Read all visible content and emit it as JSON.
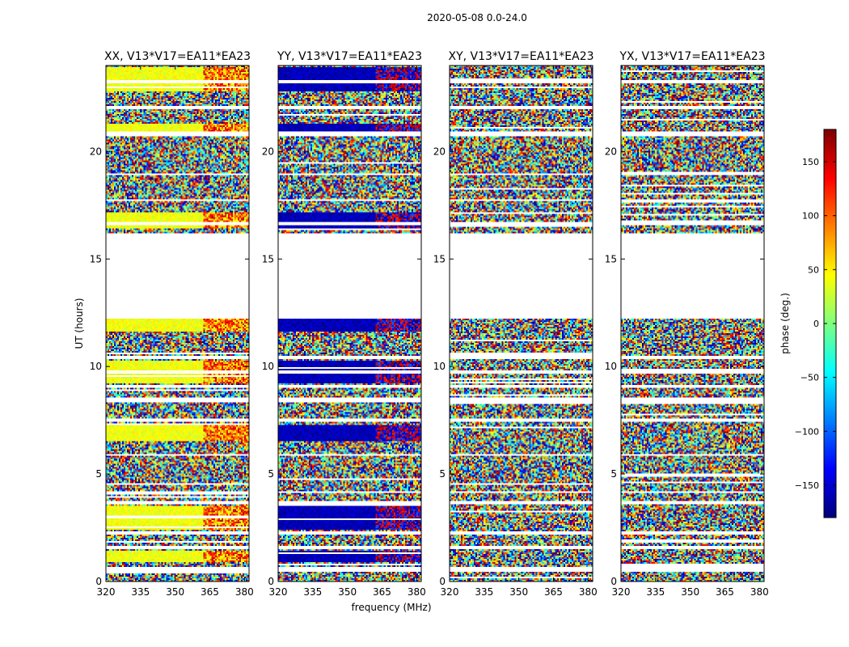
{
  "chart_data": {
    "type": "heatmap",
    "suptitle": "2020-05-08 0.0-24.0",
    "panels": [
      {
        "title": "XX, V13*V17=EA11*EA23",
        "pol": "XX"
      },
      {
        "title": "YY, V13*V17=EA11*EA23",
        "pol": "YY"
      },
      {
        "title": "XY, V13*V17=EA11*EA23",
        "pol": "XY"
      },
      {
        "title": "YX, V13*V17=EA11*EA23",
        "pol": "YX"
      }
    ],
    "xlabel": "frequency (MHz)",
    "ylabel": "UT (hours)",
    "xlim": [
      320,
      382
    ],
    "ylim": [
      0,
      24
    ],
    "x_ticks": [
      "320",
      "335",
      "350",
      "365",
      "380"
    ],
    "x_tick_values": [
      320,
      335,
      350,
      365,
      380
    ],
    "y_ticks": [
      "0",
      "5",
      "10",
      "15",
      "20"
    ],
    "y_tick_values": [
      0,
      5,
      10,
      15,
      20
    ],
    "colorbar": {
      "label": "phase (deg.)",
      "range": [
        -180,
        180
      ],
      "ticks": [
        "150",
        "100",
        "50",
        "0",
        "−50",
        "−100",
        "−150"
      ],
      "tick_values": [
        150,
        100,
        50,
        0,
        -50,
        -100,
        -150
      ],
      "colormap": "jet"
    },
    "flagged_hours": [
      [
        0.45,
        0.65
      ],
      [
        1.5,
        1.65
      ],
      [
        2.2,
        2.35
      ],
      [
        3.6,
        3.75
      ],
      [
        4.15,
        4.2
      ],
      [
        5.85,
        5.95
      ],
      [
        7.4,
        7.55
      ],
      [
        8.3,
        8.55
      ],
      [
        9.0,
        9.15
      ],
      [
        9.65,
        9.8
      ],
      [
        10.35,
        10.5
      ],
      [
        12.2,
        16.2
      ],
      [
        16.55,
        16.7
      ],
      [
        17.7,
        17.8
      ],
      [
        18.9,
        19.0
      ],
      [
        20.7,
        20.9
      ],
      [
        22.0,
        22.1
      ],
      [
        23.2,
        23.3
      ]
    ],
    "coherent_features": {
      "XX": {
        "phase_deg": 40,
        "low_band_mhz": [
          320,
          362
        ],
        "high_band_phase_deg": 90
      },
      "YY": {
        "phase_deg": -160,
        "low_band_mhz": [
          320,
          362
        ],
        "high_band_phase_deg": -170
      }
    },
    "coherent_hours": [
      [
        0.9,
        1.4
      ],
      [
        2.4,
        3.5
      ],
      [
        6.5,
        7.3
      ],
      [
        9.2,
        10.3
      ],
      [
        11.6,
        12.2
      ],
      [
        16.4,
        17.2
      ],
      [
        20.9,
        21.3
      ],
      [
        22.8,
        23.9
      ]
    ]
  }
}
